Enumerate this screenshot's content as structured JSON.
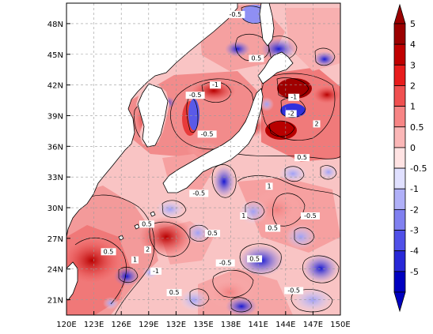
{
  "map": {
    "extent": {
      "lon_min": 120,
      "lon_max": 150,
      "lat_min": 19.5,
      "lat_max": 50
    },
    "lon_ticks": [
      {
        "value": 120,
        "label": "120E"
      },
      {
        "value": 123,
        "label": "123E"
      },
      {
        "value": 126,
        "label": "126E"
      },
      {
        "value": 129,
        "label": "129E"
      },
      {
        "value": 132,
        "label": "132E"
      },
      {
        "value": 135,
        "label": "135E"
      },
      {
        "value": 138,
        "label": "138E"
      },
      {
        "value": 141,
        "label": "141E"
      },
      {
        "value": 144,
        "label": "144E"
      },
      {
        "value": 147,
        "label": "147E"
      },
      {
        "value": 150,
        "label": "150E"
      }
    ],
    "lat_ticks": [
      {
        "value": 21,
        "label": "21N"
      },
      {
        "value": 24,
        "label": "24N"
      },
      {
        "value": 27,
        "label": "27N"
      },
      {
        "value": 30,
        "label": "30N"
      },
      {
        "value": 33,
        "label": "33N"
      },
      {
        "value": 36,
        "label": "36N"
      },
      {
        "value": 39,
        "label": "39N"
      },
      {
        "value": 42,
        "label": "42N"
      },
      {
        "value": 45,
        "label": "45N"
      },
      {
        "value": 48,
        "label": "48N"
      }
    ],
    "contour_labels": [
      {
        "text": "-0.5",
        "lon": 138.5,
        "lat": 48.7
      },
      {
        "text": "0.5",
        "lon": 140.8,
        "lat": 44.4
      },
      {
        "text": "-1",
        "lon": 136.3,
        "lat": 41.8
      },
      {
        "text": "-0.5",
        "lon": 134.1,
        "lat": 40.8
      },
      {
        "text": "-1",
        "lon": 144.9,
        "lat": 40.6
      },
      {
        "text": "-2",
        "lon": 144.6,
        "lat": 39.0
      },
      {
        "text": "2",
        "lon": 147.4,
        "lat": 38.0
      },
      {
        "text": "-0.5",
        "lon": 135.4,
        "lat": 37.0
      },
      {
        "text": "0.5",
        "lon": 145.8,
        "lat": 34.7
      },
      {
        "text": "0.5",
        "lon": 128.8,
        "lat": 28.2
      },
      {
        "text": "2",
        "lon": 128.9,
        "lat": 25.7
      },
      {
        "text": "1",
        "lon": 127.5,
        "lat": 24.7
      },
      {
        "text": "-1",
        "lon": 129.8,
        "lat": 23.6
      },
      {
        "text": "-0.5",
        "lon": 134.5,
        "lat": 31.2
      },
      {
        "text": "1",
        "lon": 139.4,
        "lat": 29.0
      },
      {
        "text": "0.5",
        "lon": 136.0,
        "lat": 27.3
      },
      {
        "text": "0.5",
        "lon": 142.6,
        "lat": 27.8
      },
      {
        "text": "-0.5",
        "lon": 146.7,
        "lat": 29.0
      },
      {
        "text": "-0.5",
        "lon": 137.4,
        "lat": 24.4
      },
      {
        "text": "-0.5",
        "lon": 144.9,
        "lat": 21.7
      },
      {
        "text": "0.5",
        "lon": 140.6,
        "lat": 24.8
      },
      {
        "text": "0.5",
        "lon": 131.8,
        "lat": 21.5
      },
      {
        "text": "1",
        "lon": 142.2,
        "lat": 31.9
      },
      {
        "text": "0.5",
        "lon": 124.6,
        "lat": 25.5
      }
    ]
  },
  "colorbar": {
    "labels": [
      "5",
      "4",
      "3",
      "2",
      "1",
      "0.5",
      "0",
      "-0.5",
      "-1",
      "-2",
      "-3",
      "-4",
      "-5"
    ],
    "colors": [
      "#9b0000",
      "#c00000",
      "#e81c1c",
      "#f05050",
      "#f78585",
      "#fbb7b7",
      "#ffe3e3",
      "#e0e0ff",
      "#b0b0f8",
      "#8080f0",
      "#5050e8",
      "#2828d8",
      "#0000c0"
    ]
  }
}
